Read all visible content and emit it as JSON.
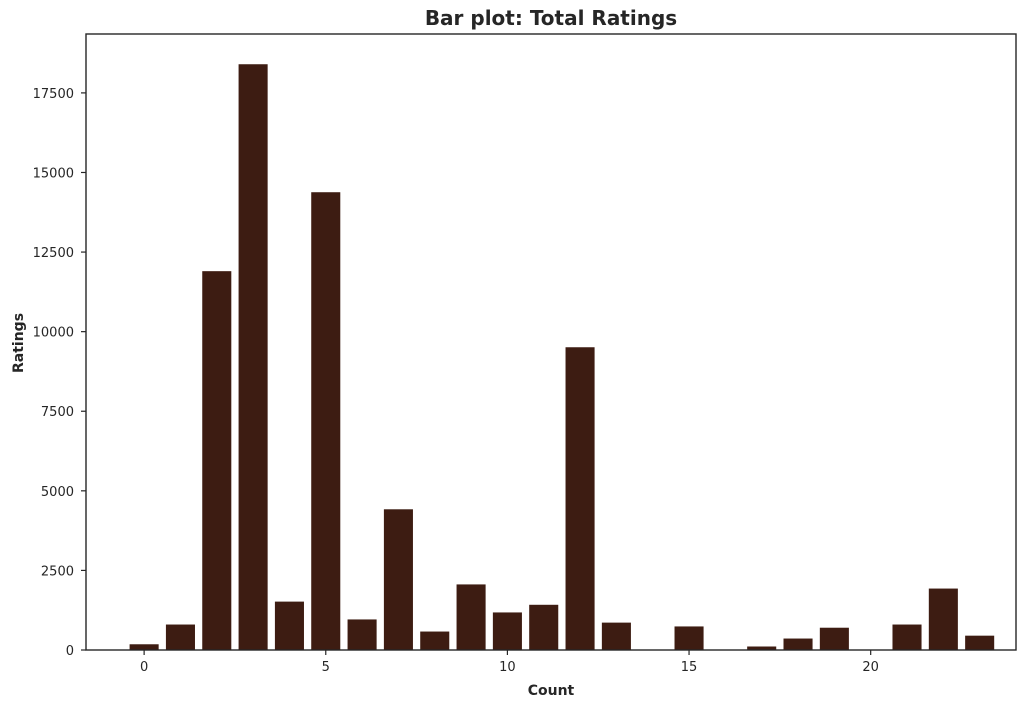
{
  "chart_data": {
    "type": "bar",
    "title": "Bar plot: Total Ratings",
    "xlabel": "Count",
    "ylabel": "Ratings",
    "x": [
      0,
      1,
      2,
      3,
      4,
      5,
      6,
      7,
      8,
      9,
      10,
      11,
      12,
      13,
      14,
      15,
      16,
      17,
      18,
      19,
      20,
      21,
      22,
      23
    ],
    "values": [
      180,
      800,
      11900,
      18400,
      1520,
      14380,
      960,
      4420,
      580,
      2060,
      1180,
      1420,
      9510,
      860,
      0,
      740,
      0,
      110,
      360,
      700,
      0,
      800,
      1930,
      450
    ],
    "xlim": [
      -1.6,
      24.0
    ],
    "ylim": [
      0,
      19350
    ],
    "xticks": [
      0,
      5,
      10,
      15,
      20
    ],
    "yticks": [
      0,
      2500,
      5000,
      7500,
      10000,
      12500,
      15000,
      17500
    ],
    "bar_color": "#3d1c12",
    "grid": false,
    "legend": "none"
  }
}
